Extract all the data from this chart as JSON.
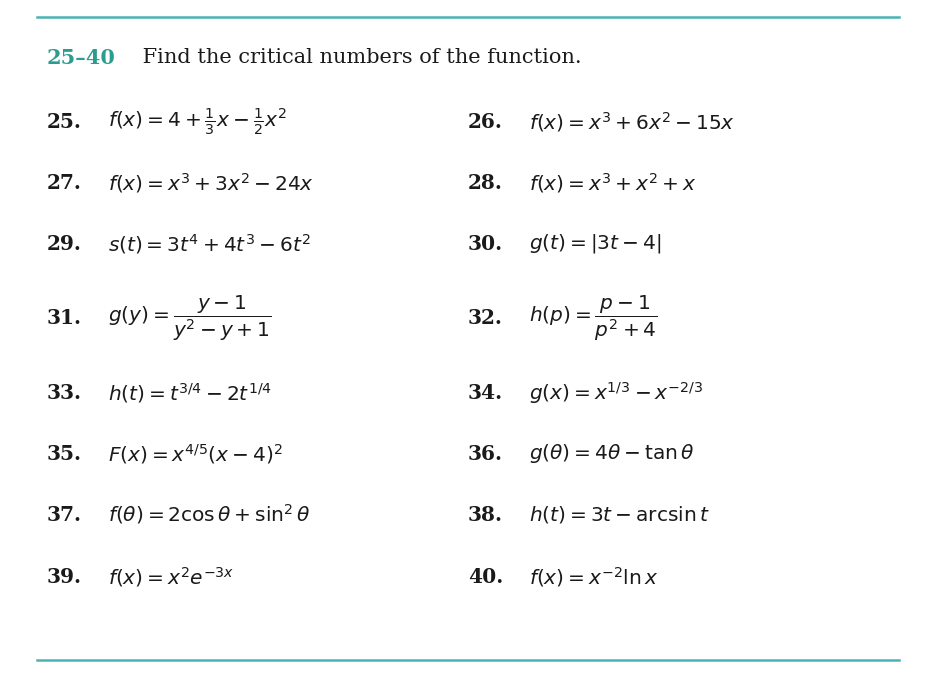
{
  "title_number": "25–40",
  "title_text": " Find the critical numbers of the function.",
  "title_color": "#2a9d8f",
  "title_number_color": "#2a9d8f",
  "background_color": "#ffffff",
  "top_line_color": "#4ab3b3",
  "bottom_line_color": "#4ab3b3",
  "text_color": "#1a1a1a",
  "bold_number_color": "#1a1a1a",
  "items": [
    {
      "num": "25.",
      "left": true,
      "col": 0,
      "row": 0,
      "formula": "$f(x) = 4 + \\frac{1}{3}x - \\frac{1}{2}x^2$"
    },
    {
      "num": "26.",
      "left": false,
      "col": 1,
      "row": 0,
      "formula": "$f(x) = x^3 + 6x^2 - 15x$"
    },
    {
      "num": "27.",
      "left": true,
      "col": 0,
      "row": 1,
      "formula": "$f(x) = x^3 + 3x^2 - 24x$"
    },
    {
      "num": "28.",
      "left": false,
      "col": 1,
      "row": 1,
      "formula": "$f(x) = x^3 + x^2 + x$"
    },
    {
      "num": "29.",
      "left": true,
      "col": 0,
      "row": 2,
      "formula": "$s(t) = 3t^4 + 4t^3 - 6t^2$"
    },
    {
      "num": "30.",
      "left": false,
      "col": 1,
      "row": 2,
      "formula": "$g(t) = |3t - 4|$"
    },
    {
      "num": "31.",
      "left": true,
      "col": 0,
      "row": 3,
      "formula": "$g(y) = \\dfrac{y - 1}{y^2 - y + 1}$"
    },
    {
      "num": "32.",
      "left": false,
      "col": 1,
      "row": 3,
      "formula": "$h(p) = \\dfrac{p - 1}{p^2 + 4}$"
    },
    {
      "num": "33.",
      "left": true,
      "col": 0,
      "row": 4,
      "formula": "$h(t) = t^{3/4} - 2t^{1/4}$"
    },
    {
      "num": "34.",
      "left": false,
      "col": 1,
      "row": 4,
      "formula": "$g(x) = x^{1/3} - x^{-2/3}$"
    },
    {
      "num": "35.",
      "left": true,
      "col": 0,
      "row": 5,
      "formula": "$F(x) = x^{4/5}(x - 4)^2$"
    },
    {
      "num": "36.",
      "left": false,
      "col": 1,
      "row": 5,
      "formula": "$g(\\theta) = 4\\theta - \\tan\\theta$"
    },
    {
      "num": "37.",
      "left": true,
      "col": 0,
      "row": 6,
      "formula": "$f(\\theta) = 2\\cos\\theta + \\sin^2\\theta$"
    },
    {
      "num": "38.",
      "left": false,
      "col": 1,
      "row": 6,
      "formula": "$h(t) = 3t - \\arcsin t$"
    },
    {
      "num": "39.",
      "left": true,
      "col": 0,
      "row": 7,
      "formula": "$f(x) = x^2 e^{-3x}$"
    },
    {
      "num": "40.",
      "left": false,
      "col": 1,
      "row": 7,
      "formula": "$f(x) = x^{-2}\\ln x$"
    }
  ],
  "figwidth": 9.36,
  "figheight": 6.77,
  "dpi": 100
}
